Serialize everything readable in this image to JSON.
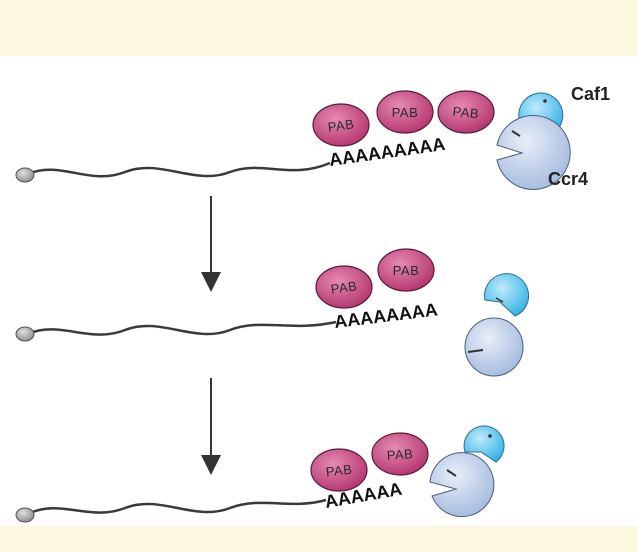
{
  "labels": {
    "caf1": "Caf1",
    "ccr4": "Ccr4",
    "pab": "PAB"
  },
  "stages": [
    {
      "pab_count": 3,
      "tail": "AAAAAAAAA"
    },
    {
      "pab_count": 2,
      "tail": "AAAAAAAA"
    },
    {
      "pab_count": 2,
      "tail": "AAAAAA"
    }
  ],
  "colors": {
    "background": "#fdfbe9",
    "pab_fill": "#c2417a",
    "caf1_fill": "#4fc3ee",
    "ccr4_fill": "#b9cbe8",
    "mrna_line": "#3a3a3a",
    "cap": "#9a9a9a"
  }
}
